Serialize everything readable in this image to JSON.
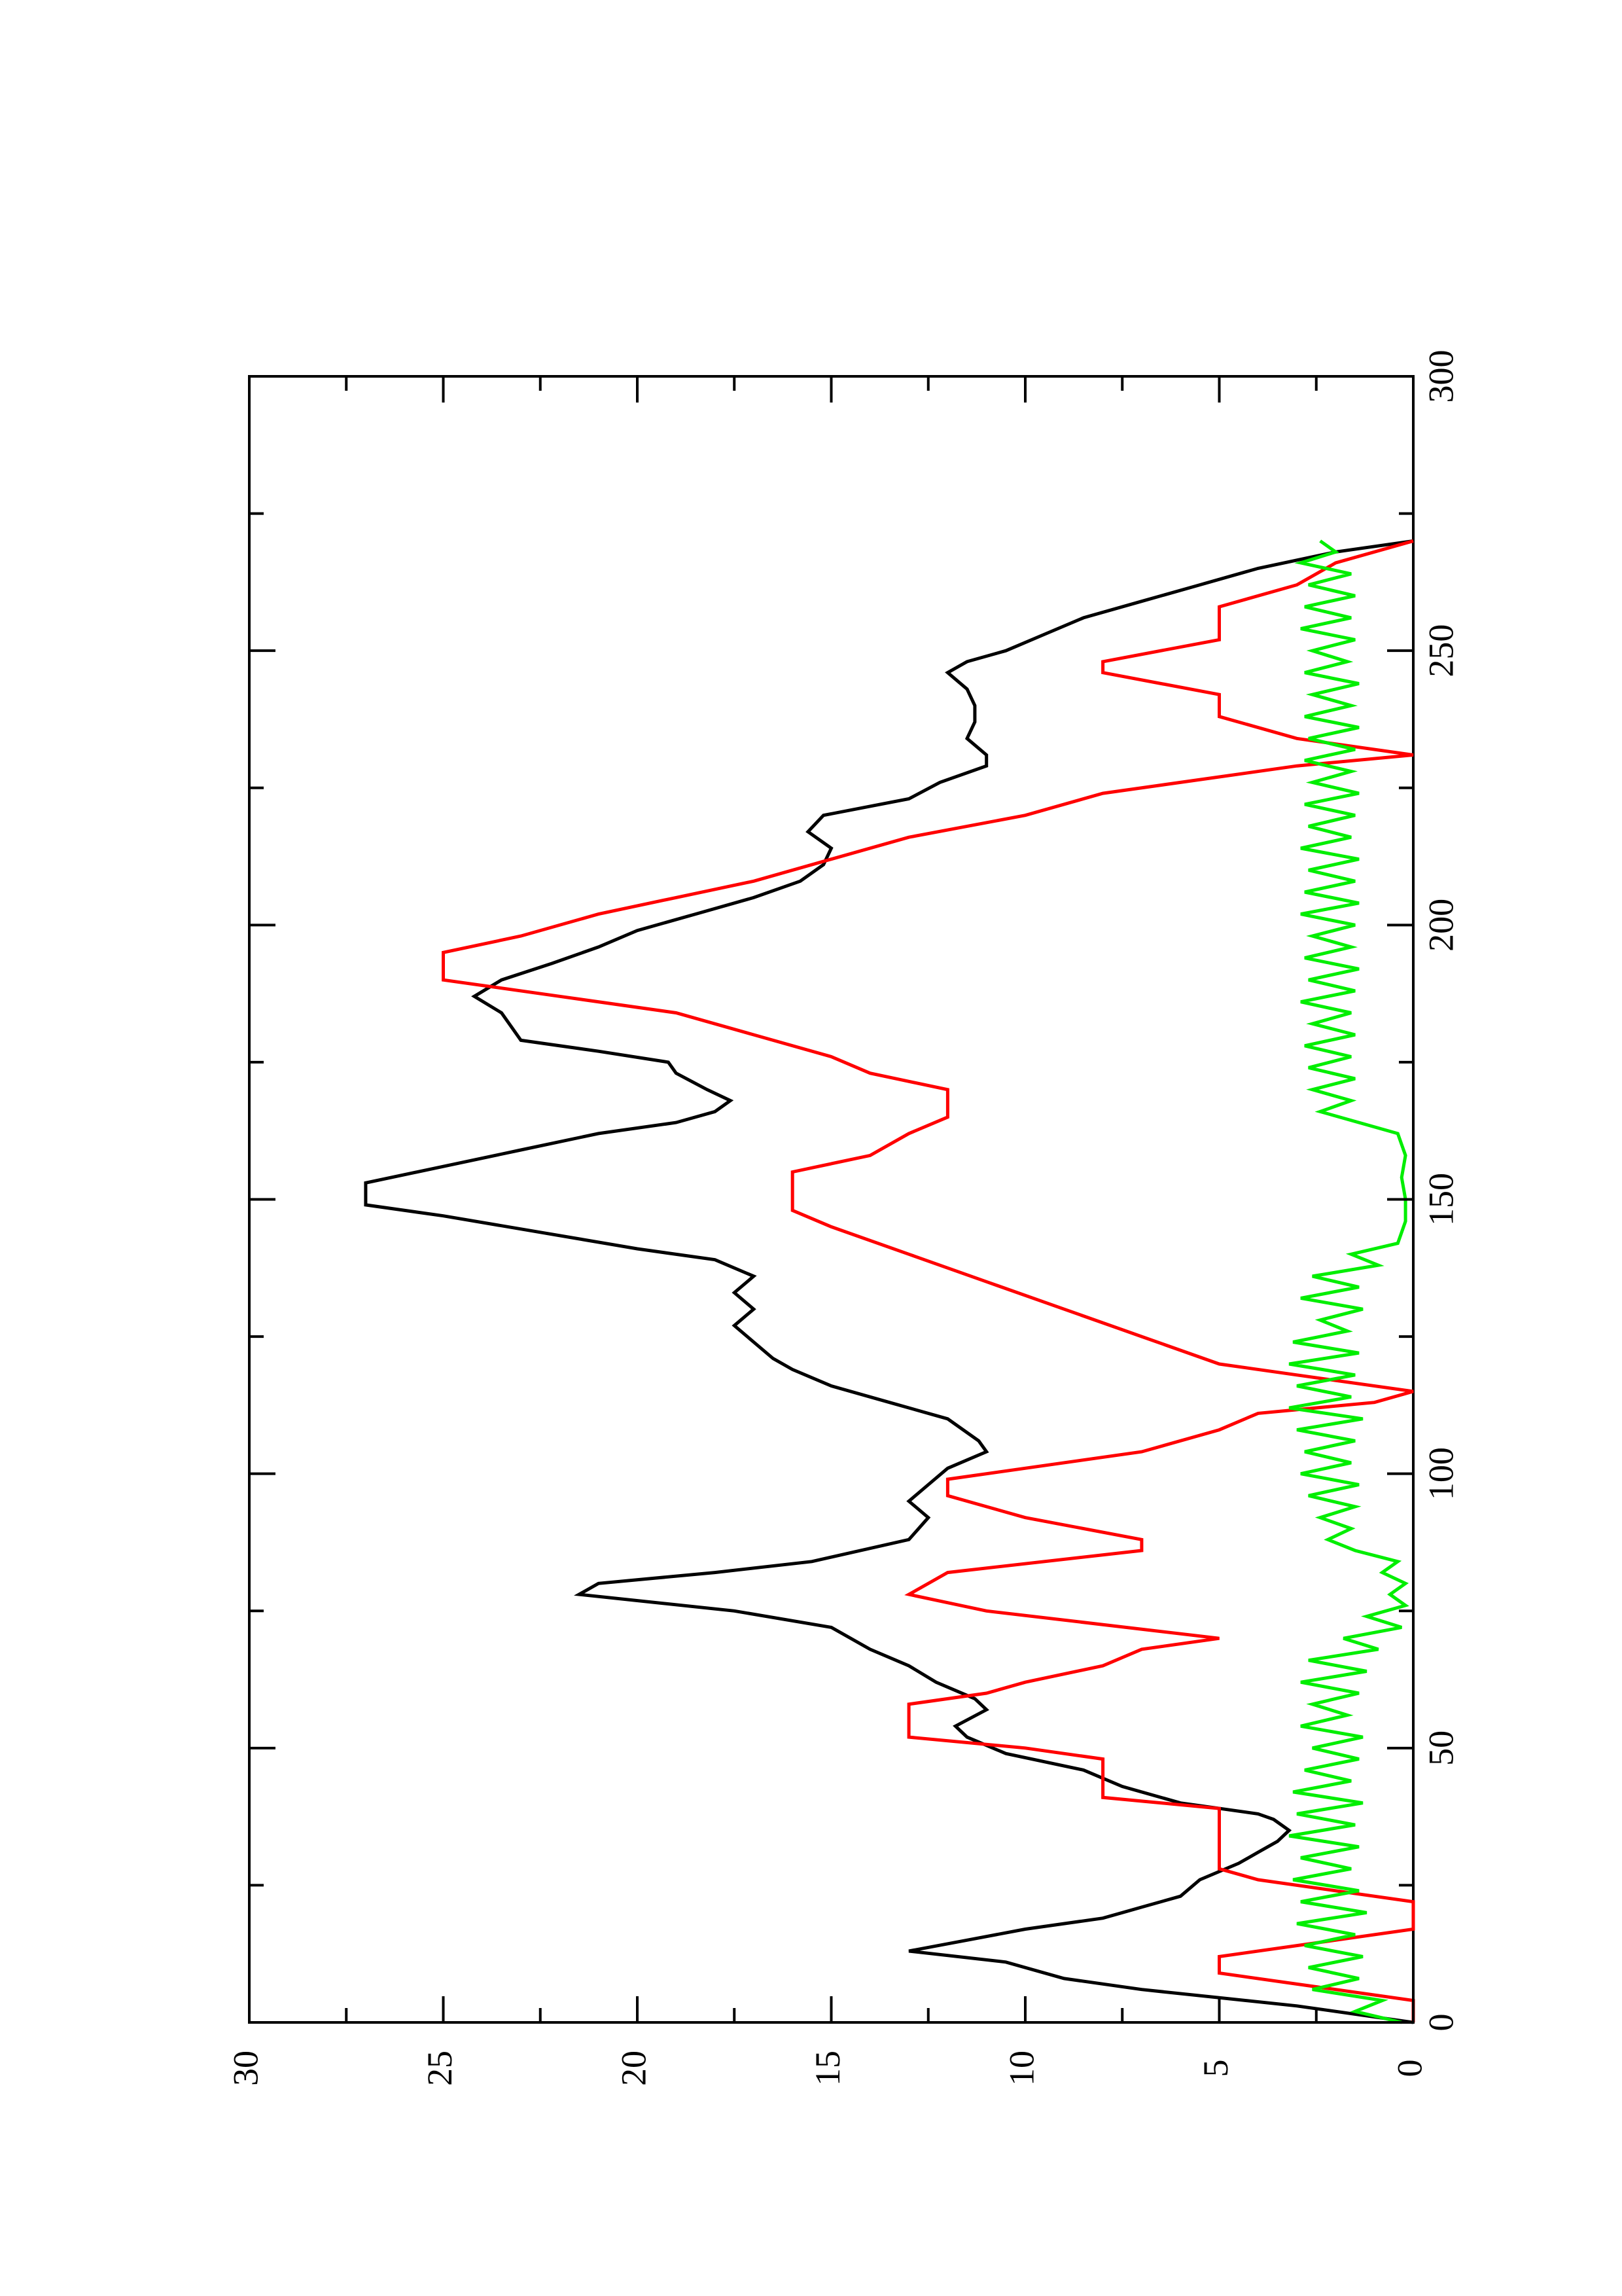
{
  "chart_data": {
    "type": "line",
    "orientation": "rotated-90-clockwise",
    "title": "",
    "xlabel": "",
    "ylabel": "",
    "xlim": [
      0,
      300
    ],
    "ylim": [
      0,
      30
    ],
    "x_ticks": [
      "0",
      "50",
      "100",
      "150",
      "200",
      "250",
      "300"
    ],
    "y_ticks": [
      "0",
      "5",
      "10",
      "15",
      "20",
      "25",
      "30"
    ],
    "grid": false,
    "legend": "none",
    "series": [
      {
        "color": "#000000",
        "points": [
          [
            0,
            0
          ],
          [
            3,
            3
          ],
          [
            6,
            7
          ],
          [
            8,
            9
          ],
          [
            11,
            10.5
          ],
          [
            13,
            13
          ],
          [
            15,
            11.5
          ],
          [
            17,
            10
          ],
          [
            19,
            8
          ],
          [
            21,
            7
          ],
          [
            23,
            6
          ],
          [
            26,
            5.5
          ],
          [
            29,
            4.5
          ],
          [
            31,
            4
          ],
          [
            33,
            3.5
          ],
          [
            35,
            3.2
          ],
          [
            37,
            3.6
          ],
          [
            38,
            4
          ],
          [
            40,
            6
          ],
          [
            43,
            7.5
          ],
          [
            46,
            8.5
          ],
          [
            49,
            10.5
          ],
          [
            52,
            11.5
          ],
          [
            54,
            11.8
          ],
          [
            57,
            11
          ],
          [
            59,
            11.3
          ],
          [
            62,
            12.3
          ],
          [
            65,
            13
          ],
          [
            68,
            14
          ],
          [
            72,
            15
          ],
          [
            75,
            17.5
          ],
          [
            78,
            21.5
          ],
          [
            80,
            21
          ],
          [
            82,
            18
          ],
          [
            84,
            15.5
          ],
          [
            88,
            13
          ],
          [
            92,
            12.5
          ],
          [
            95,
            13
          ],
          [
            98,
            12.5
          ],
          [
            101,
            12
          ],
          [
            104,
            11
          ],
          [
            106,
            11.2
          ],
          [
            110,
            12
          ],
          [
            113,
            13.5
          ],
          [
            116,
            15
          ],
          [
            119,
            16
          ],
          [
            121,
            16.5
          ],
          [
            124,
            17
          ],
          [
            127,
            17.5
          ],
          [
            130,
            17
          ],
          [
            133,
            17.5
          ],
          [
            136,
            17
          ],
          [
            139,
            18
          ],
          [
            141,
            20
          ],
          [
            144,
            22.5
          ],
          [
            147,
            25
          ],
          [
            149,
            27
          ],
          [
            153,
            27
          ],
          [
            156,
            25
          ],
          [
            159,
            23
          ],
          [
            162,
            21
          ],
          [
            164,
            19
          ],
          [
            166,
            18
          ],
          [
            168,
            17.6
          ],
          [
            170,
            18.2
          ],
          [
            173,
            19
          ],
          [
            175,
            19.2
          ],
          [
            177,
            21
          ],
          [
            179,
            23
          ],
          [
            181,
            23.2
          ],
          [
            184,
            23.5
          ],
          [
            187,
            24.2
          ],
          [
            190,
            23.5
          ],
          [
            193,
            22.2
          ],
          [
            196,
            21
          ],
          [
            199,
            20
          ],
          [
            202,
            18.5
          ],
          [
            205,
            17
          ],
          [
            208,
            15.8
          ],
          [
            211,
            15.2
          ],
          [
            214,
            15
          ],
          [
            217,
            15.6
          ],
          [
            220,
            15.2
          ],
          [
            223,
            13
          ],
          [
            226,
            12.2
          ],
          [
            229,
            11
          ],
          [
            231,
            11
          ],
          [
            234,
            11.5
          ],
          [
            237,
            11.3
          ],
          [
            240,
            11.3
          ],
          [
            243,
            11.5
          ],
          [
            246,
            12
          ],
          [
            248,
            11.5
          ],
          [
            250,
            10.5
          ],
          [
            253,
            9.5
          ],
          [
            256,
            8.5
          ],
          [
            259,
            7
          ],
          [
            262,
            5.5
          ],
          [
            265,
            4
          ],
          [
            268,
            2
          ],
          [
            270,
            0
          ]
        ]
      },
      {
        "color": "#ff0000",
        "points": [
          [
            0,
            0
          ],
          [
            4,
            0
          ],
          [
            9,
            5
          ],
          [
            12,
            5
          ],
          [
            17,
            0
          ],
          [
            22,
            0
          ],
          [
            26,
            4
          ],
          [
            28,
            5
          ],
          [
            39,
            5
          ],
          [
            41,
            8
          ],
          [
            48,
            8
          ],
          [
            50,
            10
          ],
          [
            52,
            13
          ],
          [
            58,
            13
          ],
          [
            60,
            11
          ],
          [
            62,
            10
          ],
          [
            65,
            8
          ],
          [
            68,
            7
          ],
          [
            70,
            5
          ],
          [
            75,
            11
          ],
          [
            78,
            13
          ],
          [
            82,
            12
          ],
          [
            86,
            7
          ],
          [
            88,
            7
          ],
          [
            92,
            10
          ],
          [
            96,
            12
          ],
          [
            99,
            12
          ],
          [
            104,
            7
          ],
          [
            108,
            5
          ],
          [
            111,
            4
          ],
          [
            113,
            1
          ],
          [
            115,
            0
          ],
          [
            118,
            3
          ],
          [
            120,
            5
          ],
          [
            125,
            7
          ],
          [
            130,
            9
          ],
          [
            135,
            11
          ],
          [
            140,
            13
          ],
          [
            145,
            15
          ],
          [
            148,
            16
          ],
          [
            155,
            16
          ],
          [
            158,
            14
          ],
          [
            162,
            13
          ],
          [
            165,
            12
          ],
          [
            170,
            12
          ],
          [
            173,
            14
          ],
          [
            176,
            15
          ],
          [
            180,
            17
          ],
          [
            184,
            19
          ],
          [
            187,
            22
          ],
          [
            190,
            25
          ],
          [
            195,
            25
          ],
          [
            198,
            23
          ],
          [
            202,
            21
          ],
          [
            205,
            19
          ],
          [
            208,
            17
          ],
          [
            212,
            15
          ],
          [
            216,
            13
          ],
          [
            220,
            10
          ],
          [
            224,
            8
          ],
          [
            227,
            5
          ],
          [
            229,
            3
          ],
          [
            231,
            0
          ],
          [
            234,
            3
          ],
          [
            238,
            5
          ],
          [
            242,
            5
          ],
          [
            246,
            8
          ],
          [
            248,
            8
          ],
          [
            252,
            5
          ],
          [
            258,
            5
          ],
          [
            262,
            3
          ],
          [
            266,
            2
          ],
          [
            270,
            0
          ]
        ]
      },
      {
        "color": "#00ee00",
        "points": [
          [
            0,
            0.3
          ],
          [
            2,
            1.5
          ],
          [
            4,
            0.8
          ],
          [
            6,
            2.6
          ],
          [
            8,
            1.4
          ],
          [
            10,
            2.7
          ],
          [
            12,
            1.3
          ],
          [
            14,
            2.8
          ],
          [
            16,
            1.5
          ],
          [
            18,
            3
          ],
          [
            20,
            1.2
          ],
          [
            22,
            2.9
          ],
          [
            24,
            1.4
          ],
          [
            26,
            3.1
          ],
          [
            28,
            1.6
          ],
          [
            30,
            2.9
          ],
          [
            32,
            1.4
          ],
          [
            34,
            3.2
          ],
          [
            36,
            1.5
          ],
          [
            38,
            3
          ],
          [
            40,
            1.3
          ],
          [
            42,
            3.1
          ],
          [
            44,
            1.6
          ],
          [
            46,
            2.8
          ],
          [
            48,
            1.4
          ],
          [
            50,
            2.6
          ],
          [
            52,
            1.3
          ],
          [
            54,
            2.9
          ],
          [
            56,
            1.7
          ],
          [
            58,
            2.6
          ],
          [
            60,
            1.4
          ],
          [
            62,
            2.9
          ],
          [
            64,
            1.2
          ],
          [
            66,
            2.7
          ],
          [
            68,
            0.9
          ],
          [
            70,
            1.8
          ],
          [
            72,
            0.3
          ],
          [
            74,
            1.2
          ],
          [
            76,
            0.2
          ],
          [
            78,
            0.6
          ],
          [
            80,
            0.2
          ],
          [
            82,
            0.8
          ],
          [
            84,
            0.4
          ],
          [
            86,
            1.5
          ],
          [
            88,
            2.2
          ],
          [
            90,
            1.6
          ],
          [
            92,
            2.4
          ],
          [
            94,
            1.5
          ],
          [
            96,
            2.7
          ],
          [
            98,
            1.4
          ],
          [
            100,
            2.9
          ],
          [
            102,
            1.6
          ],
          [
            104,
            2.8
          ],
          [
            106,
            1.5
          ],
          [
            108,
            3
          ],
          [
            110,
            1.3
          ],
          [
            112,
            3.2
          ],
          [
            114,
            1.6
          ],
          [
            116,
            3
          ],
          [
            118,
            1.5
          ],
          [
            120,
            3.2
          ],
          [
            122,
            1.4
          ],
          [
            124,
            3.1
          ],
          [
            126,
            1.7
          ],
          [
            128,
            2.4
          ],
          [
            130,
            1.3
          ],
          [
            132,
            2.9
          ],
          [
            134,
            1.4
          ],
          [
            136,
            2.6
          ],
          [
            138,
            0.9
          ],
          [
            140,
            1.6
          ],
          [
            142,
            0.4
          ],
          [
            144,
            0.3
          ],
          [
            146,
            0.2
          ],
          [
            150,
            0.2
          ],
          [
            154,
            0.3
          ],
          [
            158,
            0.2
          ],
          [
            160,
            0.3
          ],
          [
            162,
            0.4
          ],
          [
            164,
            1.4
          ],
          [
            166,
            2.4
          ],
          [
            168,
            1.6
          ],
          [
            170,
            2.6
          ],
          [
            172,
            1.5
          ],
          [
            174,
            2.7
          ],
          [
            176,
            1.6
          ],
          [
            178,
            2.8
          ],
          [
            180,
            1.5
          ],
          [
            182,
            2.6
          ],
          [
            184,
            1.6
          ],
          [
            186,
            2.9
          ],
          [
            188,
            1.5
          ],
          [
            190,
            2.7
          ],
          [
            192,
            1.4
          ],
          [
            194,
            2.8
          ],
          [
            196,
            1.6
          ],
          [
            198,
            2.6
          ],
          [
            200,
            1.5
          ],
          [
            202,
            2.9
          ],
          [
            204,
            1.4
          ],
          [
            206,
            2.8
          ],
          [
            208,
            1.5
          ],
          [
            210,
            2.7
          ],
          [
            212,
            1.4
          ],
          [
            214,
            2.9
          ],
          [
            216,
            1.6
          ],
          [
            218,
            2.7
          ],
          [
            220,
            1.5
          ],
          [
            222,
            2.8
          ],
          [
            224,
            1.4
          ],
          [
            226,
            2.6
          ],
          [
            228,
            1.6
          ],
          [
            230,
            2.8
          ],
          [
            232,
            1.5
          ],
          [
            234,
            2.7
          ],
          [
            236,
            1.4
          ],
          [
            238,
            2.8
          ],
          [
            240,
            1.6
          ],
          [
            242,
            2.6
          ],
          [
            244,
            1.4
          ],
          [
            246,
            2.8
          ],
          [
            248,
            1.7
          ],
          [
            250,
            2.6
          ],
          [
            252,
            1.5
          ],
          [
            254,
            2.9
          ],
          [
            256,
            1.6
          ],
          [
            258,
            2.8
          ],
          [
            260,
            1.5
          ],
          [
            262,
            2.7
          ],
          [
            264,
            1.6
          ],
          [
            266,
            2.9
          ],
          [
            268,
            2
          ],
          [
            270,
            2.4
          ]
        ]
      }
    ]
  }
}
